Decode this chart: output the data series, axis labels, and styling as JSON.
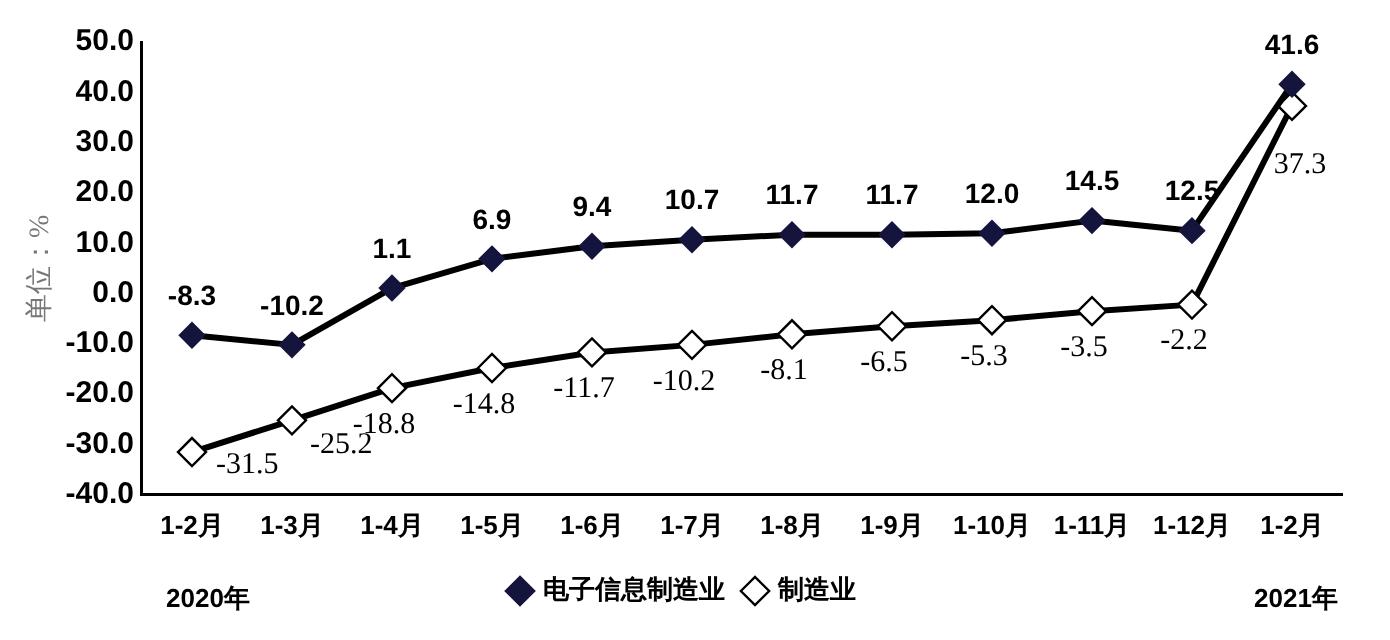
{
  "chart_data": {
    "type": "line",
    "ylabel": "单位：%",
    "categories": [
      "1-2月",
      "1-3月",
      "1-4月",
      "1-5月",
      "1-6月",
      "1-7月",
      "1-8月",
      "1-9月",
      "1-10月",
      "1-11月",
      "1-12月",
      "1-2月"
    ],
    "series": [
      {
        "name": "电子信息制造业",
        "color": "#14143c",
        "values": [
          -8.3,
          -10.2,
          1.1,
          6.9,
          9.4,
          10.7,
          11.7,
          11.7,
          12.0,
          14.5,
          12.5,
          41.6
        ],
        "value_labels": [
          "-8.3",
          "-10.2",
          "1.1",
          "6.9",
          "9.4",
          "10.7",
          "11.7",
          "11.7",
          "12.0",
          "14.5",
          "12.5",
          "41.6"
        ]
      },
      {
        "name": "制造业",
        "color": "#000000",
        "values": [
          -31.5,
          -25.2,
          -18.8,
          -14.8,
          -11.7,
          -10.2,
          -8.1,
          -6.5,
          -5.3,
          -3.5,
          -2.2,
          37.3
        ],
        "value_labels": [
          "-31.5",
          "-25.2",
          "-18.8",
          "-14.8",
          "-11.7",
          "-10.2",
          "-8.1",
          "-6.5",
          "-5.3",
          "-3.5",
          "-2.2",
          "37.3"
        ]
      }
    ],
    "ylim": [
      -40,
      50
    ],
    "yticks": [
      {
        "value": -40,
        "label": "-40.0"
      },
      {
        "value": -30,
        "label": "-30.0"
      },
      {
        "value": -20,
        "label": "-20.0"
      },
      {
        "value": -10,
        "label": "-10.0"
      },
      {
        "value": 0,
        "label": "0.0"
      },
      {
        "value": 10,
        "label": "10.0"
      },
      {
        "value": 20,
        "label": "20.0"
      },
      {
        "value": 30,
        "label": "30.0"
      },
      {
        "value": 40,
        "label": "40.0"
      },
      {
        "value": 50,
        "label": "50.0"
      }
    ],
    "grid": false,
    "legend": "bottom",
    "marker": "diamond",
    "line_style": "solid",
    "annotations": [
      "2020年",
      "2021年"
    ]
  }
}
